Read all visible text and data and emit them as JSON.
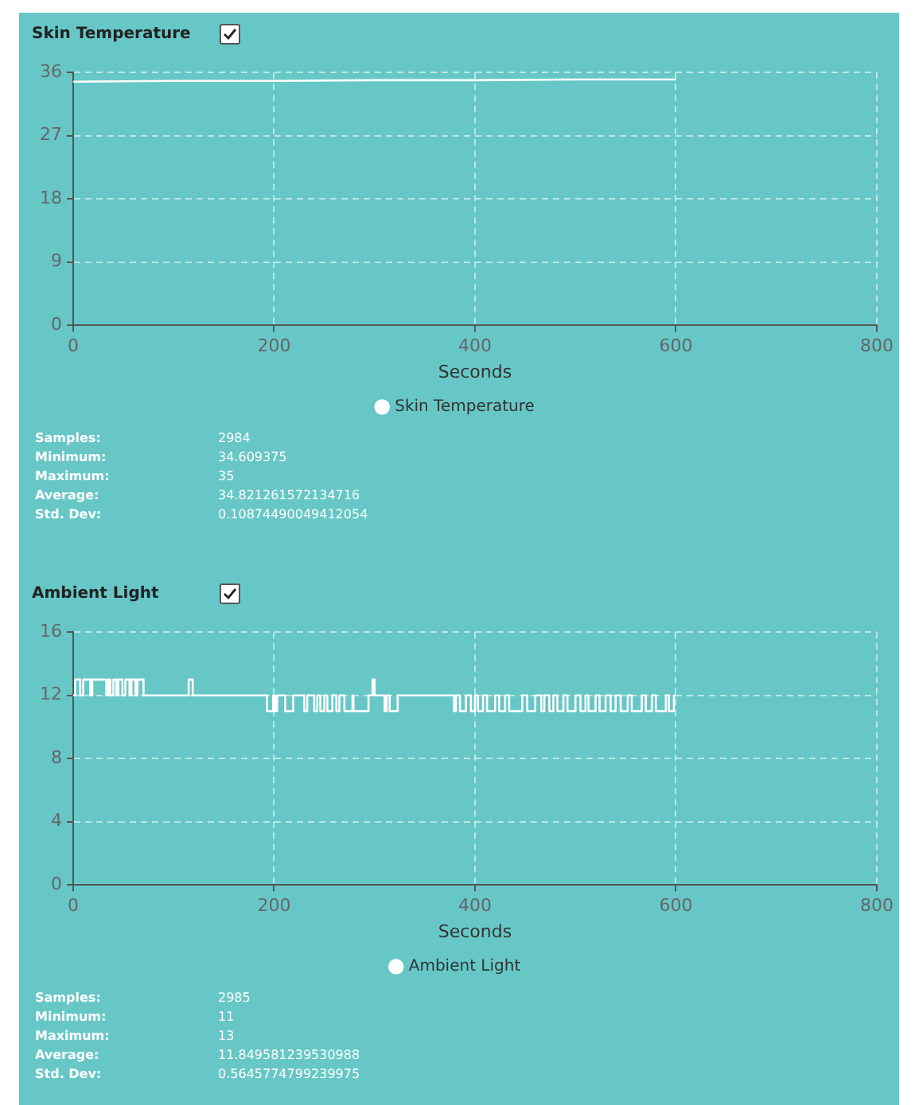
{
  "chart_data": [
    {
      "type": "line",
      "title": "Skin Temperature",
      "xlabel": "Seconds",
      "xlim": [
        0,
        800
      ],
      "xticks": [
        0,
        200,
        400,
        600,
        800
      ],
      "ylim": [
        0,
        36
      ],
      "yticks": [
        0,
        9,
        18,
        27,
        36
      ],
      "grid": true,
      "legend": "bottom",
      "series": [
        {
          "name": "Skin Temperature",
          "color": "#ffffff",
          "x": [
            0,
            100,
            200,
            300,
            400,
            500,
            600
          ],
          "values": [
            34.7,
            34.8,
            34.8,
            34.9,
            34.9,
            35,
            35
          ]
        }
      ],
      "annotations": [
        "Samples:",
        "2984",
        "Minimum:",
        "34.609375",
        "Maximum:",
        "35",
        "Average:",
        "34.821261572134716",
        "Std. Dev:",
        "0.10874490049412054"
      ]
    },
    {
      "type": "step",
      "title": "Ambient Light",
      "xlabel": "Seconds",
      "xlim": [
        0,
        800
      ],
      "xticks": [
        0,
        200,
        400,
        600,
        800
      ],
      "ylim": [
        0,
        16
      ],
      "yticks": [
        0,
        4,
        8,
        12,
        16
      ],
      "grid": true,
      "legend": "bottom",
      "series": [
        {
          "name": "Ambient Light",
          "color": "#ffffff",
          "x": [
            0,
            2,
            7,
            10,
            17,
            19,
            33,
            35,
            37,
            40,
            43,
            45,
            49,
            52,
            56,
            58,
            62,
            64,
            70,
            115,
            119,
            193,
            199,
            201,
            203,
            211,
            219,
            230,
            233,
            240,
            243,
            246,
            250,
            253,
            258,
            262,
            265,
            270,
            278,
            279,
            294,
            298,
            300,
            310,
            312,
            315,
            323,
            379,
            381,
            385,
            391,
            396,
            400,
            403,
            408,
            412,
            420,
            424,
            430,
            434,
            447,
            452,
            460,
            466,
            469,
            474,
            478,
            482,
            488,
            492,
            500,
            505,
            510,
            513,
            520,
            524,
            530,
            535,
            540,
            545,
            552,
            556,
            566,
            570,
            576,
            580,
            590,
            593,
            598,
            600
          ],
          "values": [
            12,
            13,
            12,
            13,
            12,
            13,
            12,
            13,
            12,
            13,
            12,
            13,
            12,
            13,
            12,
            13,
            12,
            13,
            12,
            13,
            12,
            11,
            12,
            11,
            12,
            11,
            12,
            11,
            12,
            11,
            12,
            11,
            12,
            11,
            12,
            11,
            12,
            11,
            12,
            11,
            12,
            13,
            12,
            11,
            12,
            11,
            12,
            11,
            12,
            11,
            12,
            11,
            12,
            11,
            12,
            11,
            12,
            11,
            12,
            11,
            12,
            11,
            12,
            11,
            12,
            11,
            12,
            11,
            12,
            11,
            12,
            11,
            12,
            11,
            12,
            11,
            12,
            11,
            12,
            11,
            12,
            11,
            12,
            11,
            12,
            11,
            12,
            11,
            12,
            12
          ]
        }
      ],
      "annotations": [
        "Samples:",
        "2985",
        "Minimum:",
        "11",
        "Maximum:",
        "13",
        "Average:",
        "11.849581239530988",
        "Std. Dev:",
        "0.5645774799239975"
      ]
    }
  ]
}
